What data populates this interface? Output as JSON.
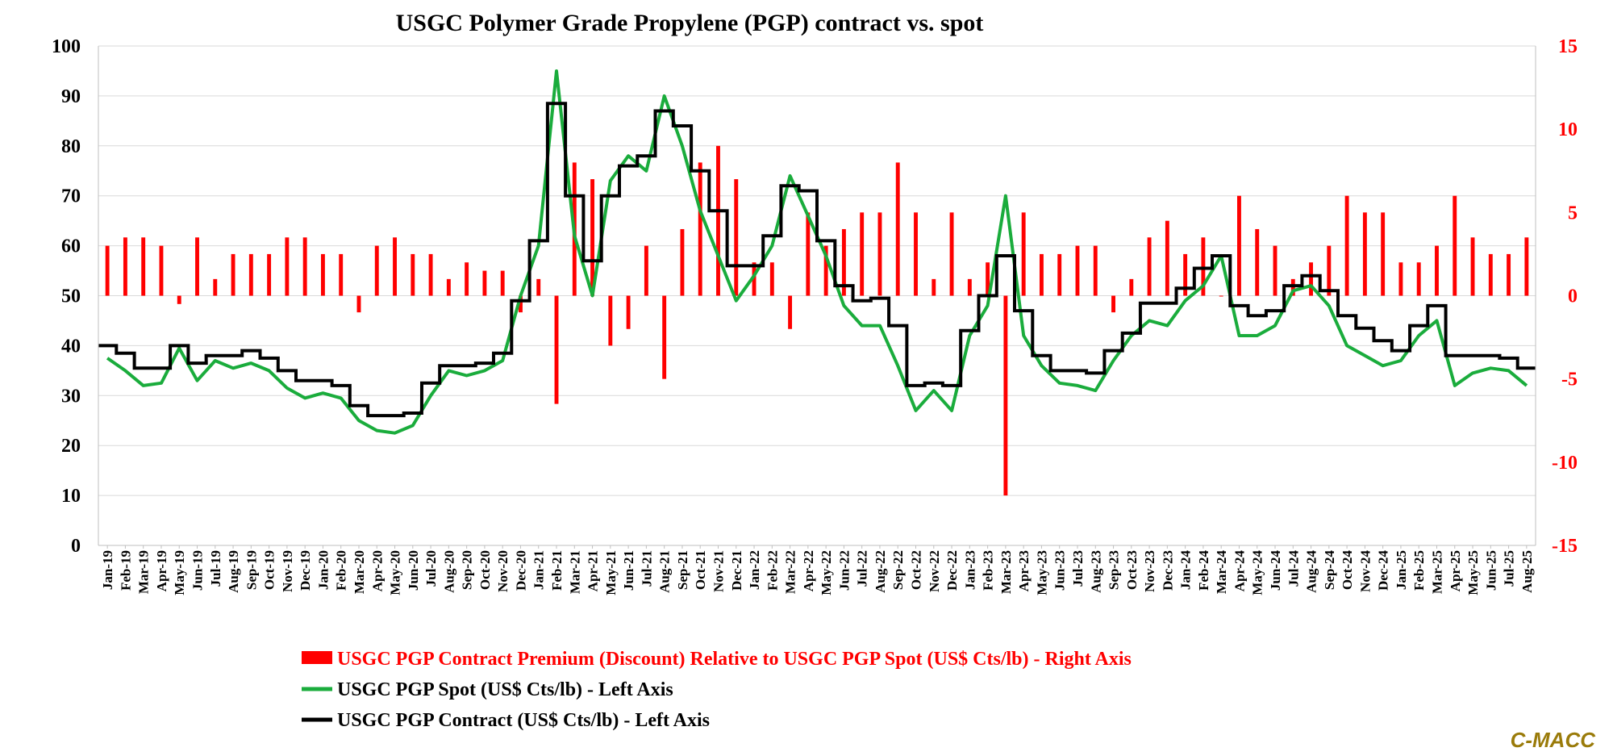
{
  "chart_data": {
    "type": "line",
    "title": "USGC Polymer Grade Propylene (PGP) contract vs. spot",
    "brand": "C-MACC",
    "left_axis": {
      "min": 0,
      "max": 100,
      "step": 10,
      "ticks": [
        "0",
        "10",
        "20",
        "30",
        "40",
        "50",
        "60",
        "70",
        "80",
        "90",
        "100"
      ]
    },
    "right_axis": {
      "min": -15,
      "max": 15,
      "step": 5,
      "ticks": [
        "-15",
        "-10",
        "-5",
        "0",
        "5",
        "10",
        "15"
      ]
    },
    "grid": true,
    "legend_position": "bottom",
    "colors": {
      "premium": "#ff0000",
      "spot": "#1aac3c",
      "contract": "#000000",
      "right_axis": "#ff0000",
      "grid": "#d9d9d9",
      "brand": "#9a7b0a"
    },
    "x_labels": [
      "Jan-19",
      "Feb-19",
      "Mar-19",
      "Apr-19",
      "May-19",
      "Jun-19",
      "Jul-19",
      "Aug-19",
      "Sep-19",
      "Oct-19",
      "Nov-19",
      "Dec-19",
      "Jan-20",
      "Feb-20",
      "Mar-20",
      "Apr-20",
      "May-20",
      "Jun-20",
      "Jul-20",
      "Aug-20",
      "Sep-20",
      "Oct-20",
      "Nov-20",
      "Dec-20",
      "Jan-21",
      "Feb-21",
      "Mar-21",
      "Apr-21",
      "May-21",
      "Jun-21",
      "Jul-21",
      "Aug-21",
      "Sep-21",
      "Oct-21",
      "Nov-21",
      "Dec-21",
      "Jan-22",
      "Feb-22",
      "Mar-22",
      "Apr-22",
      "May-22",
      "Jun-22",
      "Jul-22",
      "Aug-22",
      "Sep-22",
      "Oct-22",
      "Nov-22",
      "Dec-22",
      "Jan-23",
      "Feb-23",
      "Mar-23",
      "Apr-23",
      "May-23",
      "Jun-23",
      "Jul-23",
      "Aug-23",
      "Sep-23",
      "Oct-23",
      "Nov-23",
      "Dec-23",
      "Jan-24",
      "Feb-24",
      "Mar-24",
      "Apr-24",
      "May-24",
      "Jun-24",
      "Jul-24",
      "Aug-24",
      "Sep-24",
      "Oct-24",
      "Nov-24",
      "Dec-24",
      "Jan-25",
      "Feb-25",
      "Mar-25",
      "Apr-25",
      "May-25",
      "Jun-25",
      "Jul-25",
      "Aug-25"
    ],
    "series": [
      {
        "name": "USGC PGP Contract (US$ Cts/lb) - Left Axis",
        "axis": "left",
        "style": "step-line",
        "x": [
          "Jan-19",
          "Feb-19",
          "Mar-19",
          "Apr-19",
          "May-19",
          "Jun-19",
          "Jul-19",
          "Aug-19",
          "Sep-19",
          "Oct-19",
          "Nov-19",
          "Dec-19",
          "Jan-20",
          "Feb-20",
          "Mar-20",
          "Apr-20",
          "May-20",
          "Jun-20",
          "Jul-20",
          "Aug-20",
          "Sep-20",
          "Oct-20",
          "Nov-20",
          "Dec-20",
          "Jan-21",
          "Feb-21",
          "Mar-21",
          "Apr-21",
          "May-21",
          "Jun-21",
          "Jul-21",
          "Aug-21",
          "Sep-21",
          "Oct-21",
          "Nov-21",
          "Dec-21",
          "Jan-22",
          "Feb-22",
          "Mar-22",
          "Apr-22",
          "May-22",
          "Jun-22",
          "Jul-22",
          "Aug-22",
          "Sep-22",
          "Oct-22",
          "Nov-22",
          "Dec-22",
          "Jan-23",
          "Feb-23",
          "Mar-23",
          "Apr-23",
          "May-23",
          "Jun-23",
          "Jul-23",
          "Aug-23",
          "Sep-23",
          "Oct-23",
          "Nov-23",
          "Dec-23",
          "Jan-24",
          "Feb-24",
          "Mar-24",
          "Apr-24",
          "May-24",
          "Jun-24",
          "Jul-24",
          "Aug-24",
          "Sep-24",
          "Oct-24",
          "Nov-24",
          "Dec-24",
          "Jan-25",
          "Feb-25",
          "Mar-25",
          "Apr-25",
          "May-25",
          "Jun-25",
          "Jul-25",
          "Aug-25"
        ],
        "values": [
          40,
          38.5,
          35.5,
          35.5,
          40,
          36.5,
          38,
          38,
          39,
          37.5,
          35,
          33,
          33,
          32,
          28,
          26,
          26,
          26.5,
          32.5,
          36,
          36,
          36.5,
          38.5,
          49,
          61,
          88.5,
          70,
          57,
          70,
          76,
          78,
          87,
          84,
          75,
          67,
          56,
          56,
          62,
          72,
          71,
          61,
          52,
          49,
          49.5,
          44,
          32,
          32.5,
          32,
          43,
          50,
          58,
          47,
          38,
          35,
          35,
          34.5,
          39,
          42.5,
          48.5,
          48.5,
          51.5,
          55.5,
          58,
          48,
          46,
          47,
          52,
          54,
          51,
          46,
          43.5,
          41,
          39,
          44,
          48,
          38,
          38,
          38,
          37.5,
          35.5
        ]
      },
      {
        "name": "USGC PGP Spot (US$ Cts/lb) - Left Axis",
        "axis": "left",
        "style": "line",
        "x": [
          "Jan-19",
          "Feb-19",
          "Mar-19",
          "Apr-19",
          "May-19",
          "Jun-19",
          "Jul-19",
          "Aug-19",
          "Sep-19",
          "Oct-19",
          "Nov-19",
          "Dec-19",
          "Jan-20",
          "Feb-20",
          "Mar-20",
          "Apr-20",
          "May-20",
          "Jun-20",
          "Jul-20",
          "Aug-20",
          "Sep-20",
          "Oct-20",
          "Nov-20",
          "Dec-20",
          "Jan-21",
          "Feb-21",
          "Mar-21",
          "Apr-21",
          "May-21",
          "Jun-21",
          "Jul-21",
          "Aug-21",
          "Sep-21",
          "Oct-21",
          "Nov-21",
          "Dec-21",
          "Jan-22",
          "Feb-22",
          "Mar-22",
          "Apr-22",
          "May-22",
          "Jun-22",
          "Jul-22",
          "Aug-22",
          "Sep-22",
          "Oct-22",
          "Nov-22",
          "Dec-22",
          "Jan-23",
          "Feb-23",
          "Mar-23",
          "Apr-23",
          "May-23",
          "Jun-23",
          "Jul-23",
          "Aug-23",
          "Sep-23",
          "Oct-23",
          "Nov-23",
          "Dec-23",
          "Jan-24",
          "Feb-24",
          "Mar-24",
          "Apr-24",
          "May-24",
          "Jun-24",
          "Jul-24",
          "Aug-24",
          "Sep-24",
          "Oct-24",
          "Nov-24",
          "Dec-24",
          "Jan-25",
          "Feb-25",
          "Mar-25",
          "Apr-25",
          "May-25",
          "Jun-25",
          "Jul-25",
          "Aug-25"
        ],
        "values": [
          37.5,
          35,
          32,
          32.5,
          39.5,
          33,
          37,
          35.5,
          36.5,
          35,
          31.5,
          29.5,
          30.5,
          29.5,
          25,
          23,
          22.5,
          24,
          30,
          35,
          34,
          35,
          37,
          50,
          60,
          95,
          62,
          50,
          73,
          78,
          75,
          90,
          80,
          67,
          58,
          49,
          54,
          60,
          74,
          66,
          58,
          48,
          44,
          44,
          36,
          27,
          31,
          27,
          42,
          48,
          70,
          42,
          36,
          32.5,
          32,
          31,
          37,
          42,
          45,
          44,
          49,
          52,
          58,
          42,
          42,
          44,
          51,
          52,
          48,
          40,
          38,
          36,
          37,
          42,
          45,
          32,
          34.5,
          35.5,
          35,
          32
        ]
      },
      {
        "name": "USGC PGP Contract Premium (Discount) Relative to USGC PGP Spot (US$ Cts/lb) - Right Axis",
        "axis": "right",
        "style": "bar",
        "x": [
          "Jan-19",
          "Feb-19",
          "Mar-19",
          "Apr-19",
          "May-19",
          "Jun-19",
          "Jul-19",
          "Aug-19",
          "Sep-19",
          "Oct-19",
          "Nov-19",
          "Dec-19",
          "Jan-20",
          "Feb-20",
          "Mar-20",
          "Apr-20",
          "May-20",
          "Jun-20",
          "Jul-20",
          "Aug-20",
          "Sep-20",
          "Oct-20",
          "Nov-20",
          "Dec-20",
          "Jan-21",
          "Feb-21",
          "Mar-21",
          "Apr-21",
          "May-21",
          "Jun-21",
          "Jul-21",
          "Aug-21",
          "Sep-21",
          "Oct-21",
          "Nov-21",
          "Dec-21",
          "Jan-22",
          "Feb-22",
          "Mar-22",
          "Apr-22",
          "May-22",
          "Jun-22",
          "Jul-22",
          "Aug-22",
          "Sep-22",
          "Oct-22",
          "Nov-22",
          "Dec-22",
          "Jan-23",
          "Feb-23",
          "Mar-23",
          "Apr-23",
          "May-23",
          "Jun-23",
          "Jul-23",
          "Aug-23",
          "Sep-23",
          "Oct-23",
          "Nov-23",
          "Dec-23",
          "Jan-24",
          "Feb-24",
          "Mar-24",
          "Apr-24",
          "May-24",
          "Jun-24",
          "Jul-24",
          "Aug-24",
          "Sep-24",
          "Oct-24",
          "Nov-24",
          "Dec-24",
          "Jan-25",
          "Feb-25",
          "Mar-25",
          "Apr-25",
          "May-25",
          "Jun-25",
          "Jul-25",
          "Aug-25"
        ],
        "values": [
          3,
          3.5,
          3.5,
          3,
          -0.5,
          3.5,
          1,
          2.5,
          2.5,
          2.5,
          3.5,
          3.5,
          2.5,
          2.5,
          -1,
          3,
          3.5,
          2.5,
          2.5,
          1,
          2,
          1.5,
          1.5,
          -1,
          1,
          -6.5,
          8,
          7,
          -3,
          -2,
          3,
          -5,
          4,
          8,
          9,
          7,
          2,
          2,
          -2,
          5,
          3,
          4,
          5,
          5,
          8,
          5,
          1,
          5,
          1,
          2,
          -12,
          5,
          2.5,
          2.5,
          3,
          3,
          -1,
          1,
          3.5,
          4.5,
          2.5,
          3.5,
          0,
          6,
          4,
          3,
          1,
          2,
          3,
          6,
          5,
          5,
          2,
          2,
          3,
          6,
          3.5,
          2.5,
          2.5,
          3.5
        ]
      }
    ],
    "legend": [
      {
        "key": "premium",
        "label": "USGC PGP Contract Premium (Discount) Relative to USGC PGP Spot (US$ Cts/lb) - Right Axis"
      },
      {
        "key": "spot",
        "label": "USGC PGP Spot (US$ Cts/lb) - Left Axis"
      },
      {
        "key": "contract",
        "label": "USGC PGP Contract (US$ Cts/lb) - Left Axis"
      }
    ]
  }
}
